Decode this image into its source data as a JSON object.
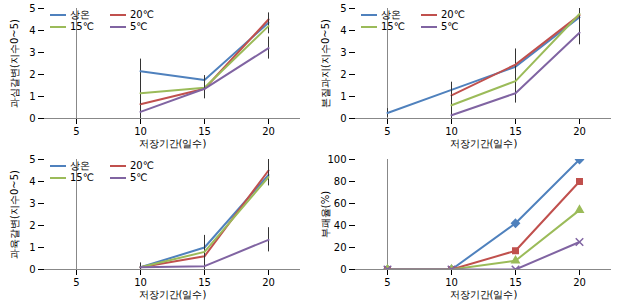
{
  "chart_data": [
    {
      "type": "line",
      "x_label": "저장기간(일수)",
      "y_label": "과심갈변(지수0~5)",
      "categories": [
        "5",
        "10",
        "15",
        "20"
      ],
      "ylim": [
        0,
        5
      ],
      "yticks": [
        0,
        1,
        2,
        3,
        4,
        5
      ],
      "legend": "top-left",
      "series": [
        {
          "name": "상온",
          "color": "#4F81BD",
          "values": [
            null,
            2.15,
            1.75,
            4.35
          ],
          "errors": [
            null,
            0.55,
            0.2,
            0.4
          ]
        },
        {
          "name": "20℃",
          "color": "#C0504D",
          "values": [
            null,
            0.65,
            1.35,
            4.5
          ],
          "errors": [
            null,
            0.3,
            0.35,
            0.3
          ]
        },
        {
          "name": "15℃",
          "color": "#9BBB59",
          "values": [
            null,
            1.15,
            1.4,
            4.2
          ],
          "errors": [
            null,
            0.5,
            0.5,
            0.35
          ]
        },
        {
          "name": "5℃",
          "color": "#8064A2",
          "values": [
            null,
            0.3,
            1.35,
            3.2
          ],
          "errors": [
            null,
            0.3,
            0.45,
            0.5
          ]
        }
      ]
    },
    {
      "type": "line",
      "x_label": "저장기간(일수)",
      "y_label": "본질과지(지수0~5)",
      "categories": [
        "5",
        "10",
        "15",
        "20"
      ],
      "ylim": [
        0,
        5
      ],
      "yticks": [
        0,
        1,
        2,
        3,
        4,
        5
      ],
      "legend": "top-left",
      "series": [
        {
          "name": "상온",
          "color": "#4F81BD",
          "values": [
            0.25,
            1.3,
            2.35,
            4.6
          ],
          "errors": [
            0.2,
            0.35,
            0.8,
            0.3
          ]
        },
        {
          "name": "20℃",
          "color": "#C0504D",
          "values": [
            null,
            1.05,
            2.45,
            4.7
          ],
          "errors": [
            null,
            0.4,
            0.7,
            0.3
          ]
        },
        {
          "name": "15℃",
          "color": "#9BBB59",
          "values": [
            null,
            0.6,
            1.7,
            4.75
          ],
          "errors": [
            null,
            0.45,
            0.6,
            0.25
          ]
        },
        {
          "name": "5℃",
          "color": "#8064A2",
          "values": [
            null,
            0.15,
            1.15,
            3.9
          ],
          "errors": [
            null,
            0.2,
            0.45,
            0.55
          ]
        }
      ]
    },
    {
      "type": "line",
      "x_label": "저장기간(일수)",
      "y_label": "과육갈변(지수0~5)",
      "categories": [
        "5",
        "10",
        "15",
        "20"
      ],
      "ylim": [
        0,
        5
      ],
      "yticks": [
        0,
        1,
        2,
        3,
        4,
        5
      ],
      "legend": "top-left",
      "series": [
        {
          "name": "상온",
          "color": "#4F81BD",
          "values": [
            null,
            0.1,
            1.0,
            4.3
          ],
          "errors": [
            null,
            0.2,
            0.55,
            0.45
          ]
        },
        {
          "name": "20℃",
          "color": "#C0504D",
          "values": [
            null,
            0.1,
            0.6,
            4.5
          ],
          "errors": [
            null,
            0.15,
            0.4,
            0.5
          ]
        },
        {
          "name": "15℃",
          "color": "#9BBB59",
          "values": [
            null,
            0.1,
            0.8,
            4.2
          ],
          "errors": [
            null,
            0.15,
            0.5,
            0.4
          ]
        },
        {
          "name": "5℃",
          "color": "#8064A2",
          "values": [
            null,
            0.1,
            0.15,
            1.35
          ],
          "errors": [
            null,
            0.1,
            0.15,
            0.55
          ]
        }
      ]
    },
    {
      "type": "line",
      "x_label": "저장기간(일수)",
      "y_label": "부패율(%)",
      "categories": [
        "5",
        "10",
        "15",
        "20"
      ],
      "ylim": [
        0,
        100
      ],
      "yticks": [
        0,
        20,
        40,
        60,
        80,
        100
      ],
      "series": [
        {
          "name": "상온",
          "color": "#4F81BD",
          "marker": "diamond",
          "values": [
            0,
            0,
            42,
            100
          ]
        },
        {
          "name": "20℃",
          "color": "#C0504D",
          "marker": "square",
          "values": [
            0,
            0,
            17,
            80
          ]
        },
        {
          "name": "15℃",
          "color": "#9BBB59",
          "marker": "triangle",
          "values": [
            0,
            0,
            8,
            54
          ]
        },
        {
          "name": "5℃",
          "color": "#8064A2",
          "marker": "x",
          "values": [
            0,
            0,
            0,
            25
          ]
        }
      ]
    }
  ]
}
